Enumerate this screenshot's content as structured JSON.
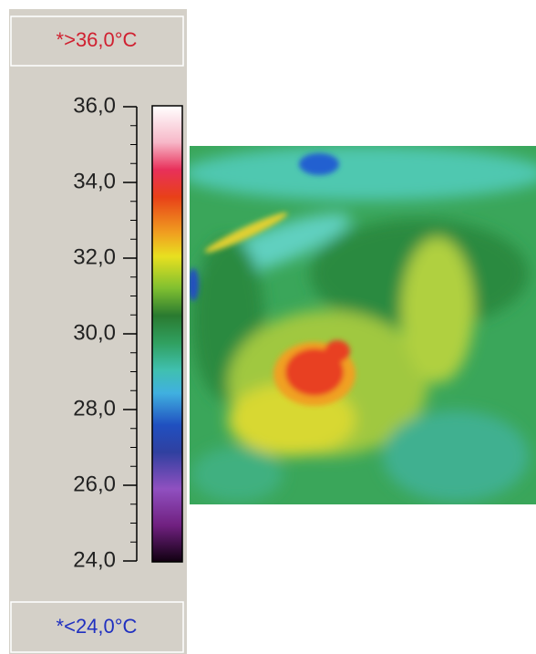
{
  "scale": {
    "over_label": "*>36,0°C",
    "under_label": "*<24,0°C",
    "lim": [
      24,
      36
    ],
    "ticks": [
      {
        "value": 36,
        "label": "36,0"
      },
      {
        "value": 34,
        "label": "34,0"
      },
      {
        "value": 32,
        "label": "32,0"
      },
      {
        "value": 30,
        "label": "30,0"
      },
      {
        "value": 28,
        "label": "28,0"
      },
      {
        "value": 26,
        "label": "26,0"
      },
      {
        "value": 24,
        "label": "24,0"
      }
    ]
  }
}
